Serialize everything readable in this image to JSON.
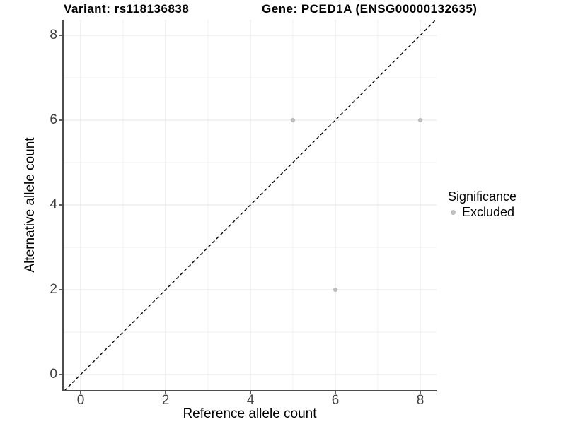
{
  "titles": {
    "left": "Variant: rs118136838",
    "right": "Gene: PCED1A (ENSG00000132635)"
  },
  "axes": {
    "x": {
      "label": "Reference allele count",
      "ticks": [
        "0",
        "2",
        "4",
        "6",
        "8"
      ]
    },
    "y": {
      "label": "Alternative allele count",
      "ticks": [
        "0",
        "2",
        "4",
        "6",
        "8"
      ]
    }
  },
  "legend": {
    "title": "Significance",
    "items": [
      {
        "label": "Excluded",
        "color": "#bdbdbd"
      }
    ]
  },
  "style": {
    "point_color": "#bdbdbd",
    "grid_major": "#e4e4e4",
    "grid_minor": "#f2f2f2",
    "axis_line": "#4d4d4d",
    "diagonal_color": "#000000",
    "background": "#ffffff"
  },
  "chart_data": {
    "type": "scatter",
    "title": "Variant: rs118136838 | Gene: PCED1A (ENSG00000132635)",
    "xlabel": "Reference allele count",
    "ylabel": "Alternative allele count",
    "xlim": [
      -0.4,
      8.4
    ],
    "ylim": [
      -0.4,
      8.4
    ],
    "x_ticks": [
      0,
      2,
      4,
      6,
      8
    ],
    "y_ticks": [
      0,
      2,
      4,
      6,
      8
    ],
    "x_minor_gridlines": [
      1,
      3,
      5,
      7
    ],
    "y_minor_gridlines": [
      1,
      3,
      5,
      7
    ],
    "grid": true,
    "legend_position": "right",
    "series": [
      {
        "name": "Excluded",
        "color": "#bdbdbd",
        "points": [
          [
            5,
            6
          ],
          [
            8,
            6
          ],
          [
            6,
            2
          ]
        ]
      }
    ],
    "reference_line": {
      "type": "abline",
      "intercept": 0,
      "slope": 1,
      "style": "dashed",
      "color": "#000000"
    }
  }
}
